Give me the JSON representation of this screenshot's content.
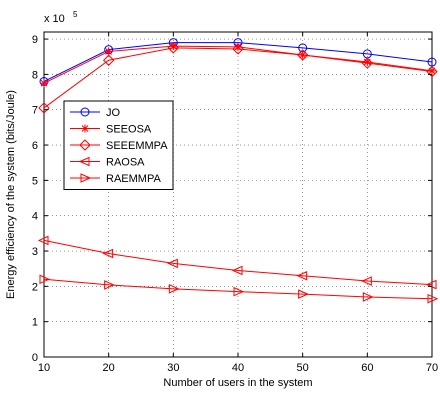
{
  "chart_data": {
    "type": "line",
    "xlabel": "Number of users in the system",
    "ylabel": "Energy efficiency of the system  (bits/Joule)",
    "multiplier": "x 10",
    "multiplier_exp": "5",
    "x": [
      10,
      20,
      30,
      40,
      50,
      60,
      70
    ],
    "xlim": [
      10,
      70
    ],
    "ylim": [
      0,
      9.2
    ],
    "xticks": [
      "10",
      "20",
      "30",
      "40",
      "50",
      "60",
      "70"
    ],
    "yticks": [
      "0",
      "1",
      "2",
      "3",
      "4",
      "5",
      "6",
      "7",
      "8",
      "9"
    ],
    "grid": true,
    "legend_position": "upper-left",
    "series": [
      {
        "name": "JO",
        "color": "#0000ff",
        "marker": "circle",
        "values": [
          7.8,
          8.7,
          8.9,
          8.9,
          8.75,
          8.58,
          8.35
        ]
      },
      {
        "name": "SEEOSA",
        "color": "#ff0000",
        "marker": "asterisk",
        "values": [
          7.75,
          8.65,
          8.8,
          8.78,
          8.55,
          8.35,
          8.1
        ]
      },
      {
        "name": "SEEEMMPA",
        "color": "#ff0000",
        "marker": "diamond",
        "values": [
          7.05,
          8.4,
          8.75,
          8.72,
          8.55,
          8.32,
          8.08
        ]
      },
      {
        "name": "RAOSA",
        "color": "#ff0000",
        "marker": "triangle-left",
        "values": [
          3.3,
          2.93,
          2.65,
          2.45,
          2.3,
          2.15,
          2.05
        ]
      },
      {
        "name": "RAEMMPA",
        "color": "#ff0000",
        "marker": "triangle-right",
        "values": [
          2.2,
          2.04,
          1.93,
          1.85,
          1.78,
          1.7,
          1.65
        ]
      }
    ]
  }
}
